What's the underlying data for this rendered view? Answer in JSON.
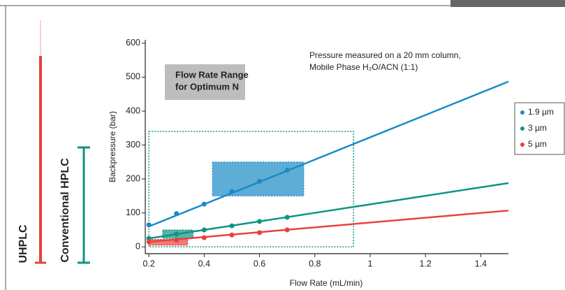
{
  "chart_data": {
    "type": "scatter",
    "x_label": "Flow Rate (mL/min)",
    "y_label": "Backpressure (bar)",
    "x": [
      0.2,
      0.3,
      0.4,
      0.5,
      0.6,
      0.7
    ],
    "fit_x": [
      0.2,
      1.5
    ],
    "series": [
      {
        "name": "1.9 µm",
        "color": "#1a8ac6",
        "values": [
          65,
          98,
          126,
          163,
          193,
          226
        ],
        "fit": [
          60,
          487
        ]
      },
      {
        "name": "3 µm",
        "color": "#0e9482",
        "values": [
          25,
          38,
          50,
          62,
          75,
          87
        ],
        "fit": [
          25,
          188
        ]
      },
      {
        "name": "5 µm",
        "color": "#e8413c",
        "values": [
          15,
          20,
          27,
          35,
          42,
          50
        ],
        "fit": [
          15,
          107
        ]
      }
    ],
    "regions": [
      {
        "x": [
          0.2,
          0.94
        ],
        "y": [
          0,
          340
        ],
        "color": "#0e9482",
        "style": "outline"
      },
      {
        "x": [
          0.43,
          0.76
        ],
        "y": [
          150,
          250
        ],
        "color": "#1a8ac6",
        "style": "filled"
      },
      {
        "x": [
          0.25,
          0.36
        ],
        "y": [
          25,
          50
        ],
        "color": "#0e9482",
        "style": "filled"
      },
      {
        "x": [
          0.2,
          0.34
        ],
        "y": [
          5,
          22
        ],
        "color": "#e8413c",
        "style": "filled"
      }
    ],
    "xlim": [
      0.187,
      1.5
    ],
    "ylim": [
      -20,
      610
    ],
    "xticks": [
      0.2,
      0.4,
      0.6,
      0.8,
      1,
      1.2,
      1.4
    ],
    "yticks": [
      0,
      100,
      200,
      300,
      400,
      500,
      600
    ],
    "annotations": {
      "note_line1": "Pressure measured on a 20 mm column,",
      "note_line2": "Mobile Phase H₂O/ACN (1:1)",
      "box_line1": "Flow Rate Range",
      "box_line2": "for Optimum N"
    },
    "side_labels": {
      "uhplc": "UHPLC",
      "conventional": "Conventional HPLC"
    }
  }
}
